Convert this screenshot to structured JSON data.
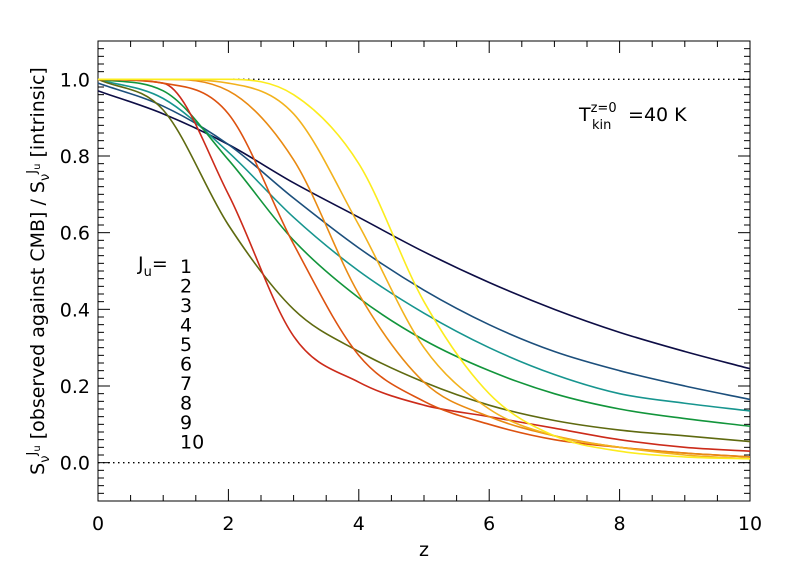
{
  "chart_data": {
    "type": "line",
    "xlabel": "z",
    "ylabel": {
      "base": "S",
      "sub": "ν",
      "sup": "J",
      "supsub": "u",
      "mid": " [observed against CMB] / ",
      "tail": " [intrinsic]"
    },
    "xlim": [
      0,
      10
    ],
    "ylim": [
      -0.1,
      1.1
    ],
    "xticks": [
      0,
      2,
      4,
      6,
      8,
      10
    ],
    "xtick_labels": [
      "0",
      "2",
      "4",
      "6",
      "8",
      "10"
    ],
    "yticks": [
      0.0,
      0.2,
      0.4,
      0.6,
      0.8,
      1.0
    ],
    "ytick_labels": [
      "0.0",
      "0.2",
      "0.4",
      "0.6",
      "0.8",
      "1.0"
    ],
    "reference_lines": [
      1.0,
      0.0
    ],
    "annotation": {
      "base": "T",
      "sub": "kin",
      "sup": "z=0",
      "rest": " =40  K"
    },
    "legend_title": "J",
    "legend_title_sub": "u",
    "legend_title_eq": "=",
    "grid": false,
    "series": [
      {
        "name": "1",
        "color": "#0d0d45",
        "x": [
          0,
          1,
          2,
          3,
          4,
          5,
          6,
          7,
          8,
          9,
          10
        ],
        "y": [
          0.97,
          0.91,
          0.83,
          0.73,
          0.64,
          0.55,
          0.47,
          0.4,
          0.34,
          0.29,
          0.245
        ]
      },
      {
        "name": "2",
        "color": "#1c4f7c",
        "x": [
          0,
          1,
          2,
          3,
          4,
          5,
          6,
          7,
          8,
          9,
          10
        ],
        "y": [
          0.99,
          0.93,
          0.83,
          0.69,
          0.56,
          0.45,
          0.36,
          0.29,
          0.24,
          0.2,
          0.165
        ]
      },
      {
        "name": "3",
        "color": "#17958f",
        "x": [
          0,
          1,
          2,
          3,
          4,
          5,
          6,
          7,
          8,
          9,
          10
        ],
        "y": [
          1.0,
          0.95,
          0.81,
          0.64,
          0.5,
          0.39,
          0.3,
          0.23,
          0.18,
          0.155,
          0.135
        ]
      },
      {
        "name": "4",
        "color": "#12953b",
        "x": [
          0,
          1,
          2,
          3,
          4,
          5,
          6,
          7,
          8,
          9,
          10
        ],
        "y": [
          1.0,
          0.97,
          0.79,
          0.58,
          0.43,
          0.32,
          0.24,
          0.18,
          0.14,
          0.115,
          0.095
        ]
      },
      {
        "name": "5",
        "color": "#5f6a10",
        "x": [
          0,
          1,
          2,
          3,
          4,
          5,
          6,
          7,
          8,
          9,
          10
        ],
        "y": [
          1.0,
          0.92,
          0.62,
          0.4,
          0.29,
          0.21,
          0.15,
          0.11,
          0.085,
          0.07,
          0.055
        ]
      },
      {
        "name": "6",
        "color": "#cc2b1a",
        "x": [
          0,
          1,
          2,
          3,
          4,
          5,
          6,
          7,
          8,
          9,
          10
        ],
        "y": [
          1.0,
          0.99,
          0.7,
          0.33,
          0.21,
          0.15,
          0.12,
          0.09,
          0.06,
          0.04,
          0.03
        ]
      },
      {
        "name": "7",
        "color": "#dd5210",
        "x": [
          0,
          1,
          2,
          3,
          4,
          5,
          6,
          7,
          8,
          9,
          10
        ],
        "y": [
          1.0,
          0.99,
          0.91,
          0.57,
          0.28,
          0.16,
          0.1,
          0.06,
          0.04,
          0.025,
          0.015
        ]
      },
      {
        "name": "8",
        "color": "#e98a12",
        "x": [
          0,
          1,
          2,
          3,
          4,
          5,
          6,
          7,
          8,
          9,
          10
        ],
        "y": [
          1.0,
          1.0,
          0.97,
          0.79,
          0.44,
          0.21,
          0.12,
          0.07,
          0.04,
          0.025,
          0.015
        ]
      },
      {
        "name": "9",
        "color": "#f2b21d",
        "x": [
          0,
          1,
          2,
          3,
          4,
          5,
          6,
          7,
          8,
          9,
          10
        ],
        "y": [
          1.0,
          1.0,
          0.99,
          0.91,
          0.62,
          0.3,
          0.14,
          0.07,
          0.04,
          0.02,
          0.01
        ]
      },
      {
        "name": "10",
        "color": "#fcec1e",
        "x": [
          0,
          1,
          2,
          3,
          4,
          5,
          6,
          7,
          8,
          9,
          10
        ],
        "y": [
          1.0,
          1.0,
          1.0,
          0.96,
          0.78,
          0.42,
          0.18,
          0.07,
          0.03,
          0.015,
          0.01
        ]
      }
    ]
  }
}
